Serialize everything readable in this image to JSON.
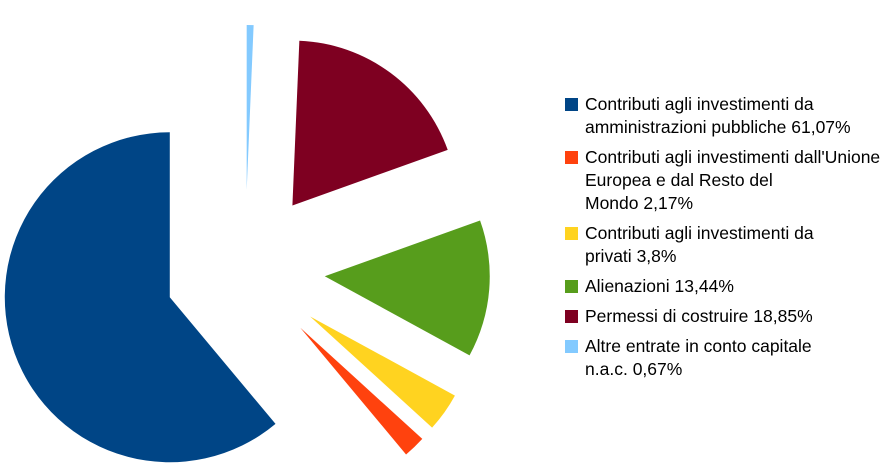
{
  "chart_data": {
    "type": "pie",
    "categories": [
      "Contributi agli investimenti da amministrazioni pubbliche",
      "Contributi agli investimenti dall'Unione Europea e dal Resto del Mondo",
      "Contributi agli investimenti da privati",
      "Alienazioni",
      "Permessi di costruire",
      "Altre entrate in conto capitale n.a.c."
    ],
    "values": [
      61.07,
      2.17,
      3.8,
      13.44,
      18.85,
      0.67
    ],
    "value_labels": [
      "61,07%",
      "2,17%",
      "3,8%",
      "13,44%",
      "18,85%",
      "0,67%"
    ],
    "colors": [
      "#004586",
      "#ff420e",
      "#ffd320",
      "#579d1c",
      "#7e0021",
      "#83caff"
    ],
    "legend": "right"
  }
}
